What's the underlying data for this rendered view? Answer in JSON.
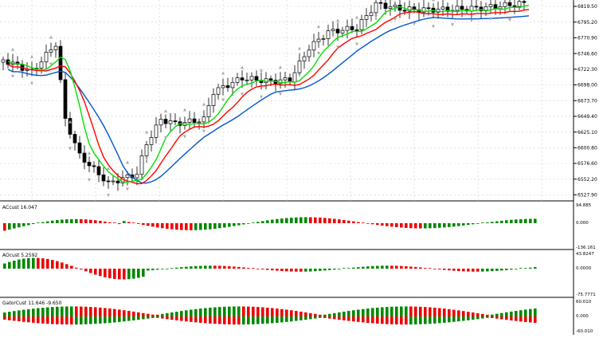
{
  "main_chart": {
    "axis_labels": [
      "6819.50",
      "6795.20",
      "6770.90",
      "6746.60",
      "6722.30",
      "6698.00",
      "6673.70",
      "6649.40",
      "6625.10",
      "6600.80",
      "6576.60",
      "6552.20",
      "6527.90"
    ],
    "colors": {
      "lips": "#00e000",
      "teeth": "#ff0000",
      "jaw": "#0055cc",
      "candle": "#000000",
      "fractal": "#aaaaaa"
    }
  },
  "panel_ac": {
    "title": "ACcust 16.047",
    "scale_top": "94.885",
    "scale_zero": "0.000",
    "scale_bottom": "-136.161"
  },
  "panel_ao": {
    "title": "AOcust 5.2592",
    "scale_top": "43.8247",
    "scale_zero": "0.0000",
    "scale_bottom": "-75.7771"
  },
  "panel_gator": {
    "title": "GatorCust 11.646 -9.650",
    "scale_top": "60.010",
    "scale_zero": "0.000",
    "scale_bottom": "-60.010"
  },
  "colors": {
    "up": "#008800",
    "down": "#ee0000",
    "grid": "#cfcfcf",
    "axis": "#000000"
  }
}
